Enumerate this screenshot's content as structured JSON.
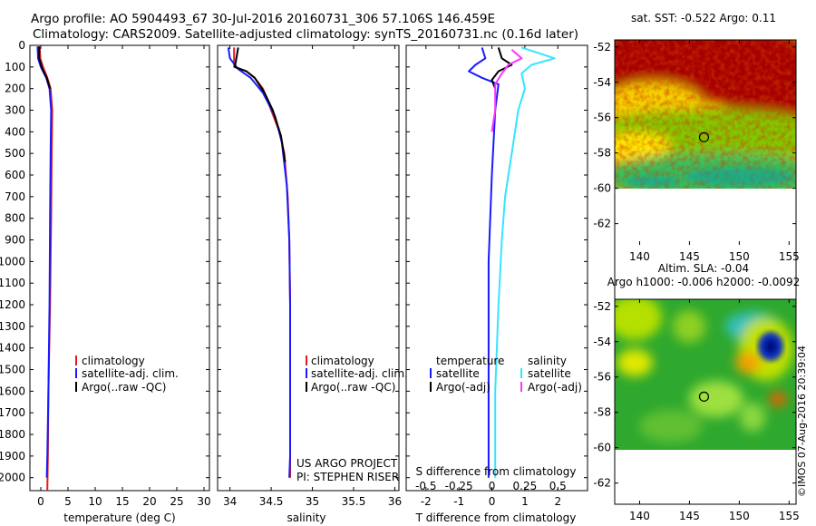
{
  "header": {
    "line1": "Argo profile: AO 5904493_67 30-Jul-2016 20160731_306 57.106S 146.459E",
    "line2": "Climatology: CARS2009. Satellite-adjusted climatology: synTS_20160731.nc (0.16d later)"
  },
  "colors": {
    "climatology": "#e11b1b",
    "satellite_clim": "#1a1aff",
    "argo": "#000000",
    "satellite_sal": "#33e5ff",
    "argo_sal": "#ff33ff"
  },
  "chart_data": [
    {
      "id": "temperature",
      "type": "line",
      "xlabel": "temperature (deg C)",
      "ylabel": "",
      "xlim": [
        -2,
        31
      ],
      "ylim": [
        2060,
        0
      ],
      "x_ticks": [
        0,
        5,
        10,
        15,
        20,
        25,
        30
      ],
      "y_ticks": [
        0,
        100,
        200,
        300,
        400,
        500,
        600,
        700,
        800,
        900,
        1000,
        1100,
        1200,
        1300,
        1400,
        1500,
        1600,
        1700,
        1800,
        1900,
        2000
      ],
      "legend": [
        "climatology",
        "satellite-adj. clim.",
        "Argo(..raw -QC)"
      ],
      "series": [
        {
          "name": "climatology",
          "color_key": "climatology",
          "points": [
            [
              -0.2,
              5
            ],
            [
              -0.1,
              60
            ],
            [
              0.4,
              100
            ],
            [
              1.2,
              150
            ],
            [
              1.8,
              200
            ],
            [
              2.1,
              300
            ],
            [
              2.0,
              500
            ],
            [
              1.9,
              800
            ],
            [
              1.7,
              1200
            ],
            [
              1.4,
              1600
            ],
            [
              1.3,
              1900
            ],
            [
              1.2,
              2060
            ]
          ]
        },
        {
          "name": "satellite-adj. clim.",
          "color_key": "satellite_clim",
          "points": [
            [
              -0.6,
              5
            ],
            [
              -0.5,
              60
            ],
            [
              0.0,
              100
            ],
            [
              1.0,
              150
            ],
            [
              1.6,
              200
            ],
            [
              1.9,
              300
            ],
            [
              1.8,
              500
            ],
            [
              1.7,
              800
            ],
            [
              1.6,
              1200
            ],
            [
              1.4,
              1600
            ],
            [
              1.2,
              1900
            ],
            [
              1.1,
              2000
            ]
          ]
        },
        {
          "name": "Argo(..raw -QC)",
          "color_key": "argo",
          "points": [
            [
              -0.3,
              5
            ],
            [
              -0.3,
              60
            ],
            [
              0.3,
              110
            ],
            [
              1.1,
              150
            ],
            [
              1.7,
              200
            ]
          ]
        }
      ]
    },
    {
      "id": "salinity",
      "type": "line",
      "xlabel": "salinity",
      "ylabel": "",
      "xlim": [
        33.85,
        36.05
      ],
      "ylim": [
        2060,
        0
      ],
      "x_ticks": [
        34,
        34.5,
        35,
        35.5,
        36
      ],
      "x_tick_labels": [
        "34",
        "34.5",
        "35",
        "35.5",
        "36"
      ],
      "legend": [
        "climatology",
        "satellite-adj. clim.",
        "Argo(..raw -QC)"
      ],
      "annotations": [
        "US ARGO PROJECT",
        "PI: STEPHEN RISER"
      ],
      "series": [
        {
          "name": "climatology",
          "color_key": "climatology",
          "points": [
            [
              34.05,
              10
            ],
            [
              34.05,
              100
            ],
            [
              34.2,
              120
            ],
            [
              34.3,
              150
            ],
            [
              34.4,
              200
            ],
            [
              34.5,
              300
            ],
            [
              34.6,
              400
            ],
            [
              34.66,
              500
            ],
            [
              34.7,
              700
            ],
            [
              34.72,
              900
            ],
            [
              34.73,
              1200
            ],
            [
              34.73,
              1600
            ],
            [
              34.73,
              2000
            ]
          ]
        },
        {
          "name": "satellite-adj. clim.",
          "color_key": "satellite_clim",
          "points": [
            [
              33.98,
              10
            ],
            [
              34.0,
              60
            ],
            [
              34.1,
              110
            ],
            [
              34.25,
              150
            ],
            [
              34.4,
              220
            ],
            [
              34.55,
              330
            ],
            [
              34.63,
              450
            ],
            [
              34.69,
              650
            ],
            [
              34.72,
              900
            ],
            [
              34.73,
              1200
            ],
            [
              34.73,
              1600
            ],
            [
              34.73,
              1900
            ],
            [
              34.72,
              2000
            ]
          ]
        },
        {
          "name": "Argo(..raw -QC)",
          "color_key": "argo",
          "points": [
            [
              34.1,
              10
            ],
            [
              34.06,
              100
            ],
            [
              34.2,
              120
            ],
            [
              34.3,
              150
            ],
            [
              34.42,
              220
            ],
            [
              34.52,
              300
            ],
            [
              34.62,
              420
            ],
            [
              34.67,
              540
            ]
          ]
        }
      ]
    },
    {
      "id": "difference",
      "type": "line",
      "xlabel": "T difference from climatology",
      "xlabel_top": "S difference from climatology",
      "xlim": [
        -2.6,
        2.9
      ],
      "ylim": [
        2060,
        0
      ],
      "x_ticks": [
        -2,
        -1,
        0,
        1,
        2
      ],
      "s_ticks": [
        -0.5,
        -0.25,
        0,
        0.25,
        0.5
      ],
      "legend_t_title": "temperature",
      "legend_s_title": "salinity",
      "legend_entries": [
        "satellite",
        "Argo(-adj)",
        "satellite",
        "Argo(-adj)"
      ],
      "series": [
        {
          "name": "satellite",
          "color_key": "satellite_clim",
          "points": [
            [
              -0.3,
              10
            ],
            [
              -0.2,
              60
            ],
            [
              -0.5,
              90
            ],
            [
              -0.7,
              120
            ],
            [
              -0.3,
              150
            ],
            [
              0.2,
              180
            ],
            [
              0.1,
              300
            ],
            [
              0.0,
              600
            ],
            [
              -0.1,
              1000
            ],
            [
              -0.1,
              1400
            ],
            [
              -0.1,
              2000
            ]
          ]
        },
        {
          "name": "Argo(-adj)",
          "color_key": "argo",
          "points": [
            [
              0.2,
              10
            ],
            [
              0.3,
              60
            ],
            [
              0.6,
              90
            ],
            [
              0.2,
              120
            ],
            [
              0.0,
              160
            ],
            [
              0.1,
              200
            ]
          ]
        },
        {
          "name": "satellite",
          "color_key": "satellite_sal",
          "points": [
            [
              0.9,
              10
            ],
            [
              1.3,
              30
            ],
            [
              1.9,
              60
            ],
            [
              1.2,
              90
            ],
            [
              0.9,
              130
            ],
            [
              1.0,
              200
            ],
            [
              0.8,
              300
            ],
            [
              0.6,
              500
            ],
            [
              0.4,
              700
            ],
            [
              0.3,
              900
            ],
            [
              0.2,
              1200
            ],
            [
              0.1,
              1600
            ],
            [
              0.1,
              2000
            ]
          ]
        },
        {
          "name": "Argo(-adj)",
          "color_key": "argo_sal",
          "points": [
            [
              0.6,
              20
            ],
            [
              0.9,
              60
            ],
            [
              0.5,
              90
            ],
            [
              0.3,
              130
            ],
            [
              0.1,
              180
            ],
            [
              0.1,
              300
            ],
            [
              0.0,
              400
            ]
          ]
        }
      ]
    },
    {
      "id": "sst_map",
      "type": "heatmap",
      "title": "sat. SST: -0.522 Argo: 0.11",
      "xlim": [
        137.5,
        155.7
      ],
      "ylim": [
        -63.2,
        -51.6
      ],
      "x_ticks": [
        140,
        145,
        150,
        155
      ],
      "y_ticks": [
        -52,
        -54,
        -56,
        -58,
        -60,
        -62
      ],
      "profile_location": [
        146.46,
        -57.11
      ],
      "data_extent_lat": [
        -60,
        -51.6
      ]
    },
    {
      "id": "sla_map",
      "type": "heatmap",
      "title_line1": "Altim. SLA: -0.04",
      "title_line2": "Argo h1000: -0.006 h2000: -0.0092",
      "xlim": [
        137.5,
        155.7
      ],
      "ylim": [
        -63.2,
        -51.6
      ],
      "x_ticks": [
        140,
        145,
        150,
        155
      ],
      "y_ticks": [
        -52,
        -54,
        -56,
        -58,
        -60,
        -62
      ],
      "profile_location": [
        146.46,
        -57.11
      ],
      "data_extent_lat": [
        -60,
        -51.6
      ]
    }
  ],
  "footer": {
    "credit": "©IMOS 07-Aug-2016 20:39:04"
  }
}
